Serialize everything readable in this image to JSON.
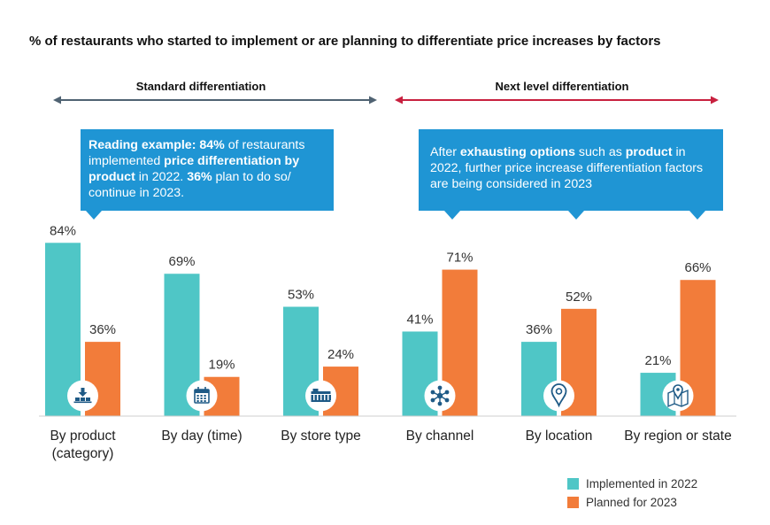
{
  "chart_data": {
    "type": "bar",
    "title": "% of restaurants who started to implement or are planning to differentiate price increases by factors",
    "categories": [
      [
        "By product",
        "(category)"
      ],
      [
        "By day (time)"
      ],
      [
        "By store type"
      ],
      [
        "By channel"
      ],
      [
        "By location"
      ],
      [
        "By region or state"
      ]
    ],
    "series": [
      {
        "name": "Implemented in 2022",
        "values": [
          84,
          69,
          53,
          41,
          36,
          21
        ],
        "color": "#4fc6c6"
      },
      {
        "name": "Planned for 2023",
        "values": [
          36,
          19,
          24,
          71,
          52,
          66
        ],
        "color": "#f27c3a"
      }
    ],
    "value_suffix": "%",
    "ylim": [
      0,
      100
    ],
    "grid": false,
    "legend": "bottom-right",
    "icons": [
      "product-download-icon",
      "calendar-icon",
      "store-icon",
      "channel-network-icon",
      "location-pin-icon",
      "map-pin-icon"
    ],
    "sections": [
      {
        "label": "Standard differentiation",
        "color": "#4f6272"
      },
      {
        "label": "Next level differentiation",
        "color": "#c8203f"
      }
    ]
  },
  "callouts": {
    "reading": {
      "b1": "Reading example: 84%",
      "t1": " of restaurants implemented ",
      "b2": "price differentiation by product",
      "t2": " in 2022. ",
      "b3": "36%",
      "t3": " plan to do so/ continue in 2023."
    },
    "next": {
      "t1": "After ",
      "b1": "exhausting options",
      "t2": " such as ",
      "b2": "product",
      "t3": " in 2022, further price increase differentiation factors are being considered in 2023"
    }
  }
}
